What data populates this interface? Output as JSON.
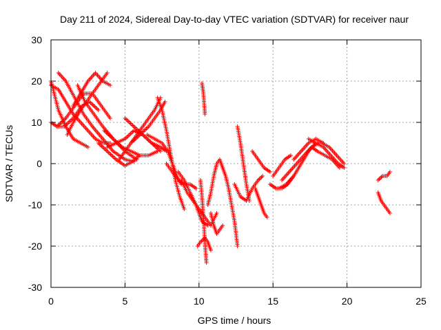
{
  "chart_data": {
    "type": "scatter",
    "title": "Day 211 of 2024, Sidereal Day-to-day VTEC variation (SDTVAR) for receiver naur",
    "xlabel": "GPS time / hours",
    "ylabel": "SDTVAR / TECUs",
    "xlim": [
      0,
      25
    ],
    "ylim": [
      -30,
      30
    ],
    "xticks": [
      "0",
      "5",
      "10",
      "15",
      "20",
      "25"
    ],
    "yticks": [
      "-30",
      "-20",
      "-10",
      "0",
      "10",
      "20",
      "30"
    ],
    "grid": true,
    "marker": "+",
    "color": "#ff0000",
    "series": [
      {
        "x": [
          0.0,
          0.5,
          1.0,
          1.5,
          2.0,
          2.5
        ],
        "y": [
          20,
          13,
          9,
          6,
          5,
          4
        ]
      },
      {
        "x": [
          0.0,
          0.5,
          1.0,
          1.5,
          2.0,
          2.5,
          3.0,
          3.5,
          4.0
        ],
        "y": [
          19,
          18,
          15,
          12,
          10,
          8,
          6,
          5,
          5
        ]
      },
      {
        "x": [
          0.0,
          0.4,
          0.9,
          1.5,
          2.1,
          2.6,
          3.2
        ],
        "y": [
          10,
          9,
          9,
          11,
          14,
          15,
          13
        ]
      },
      {
        "x": [
          0.4,
          1.0,
          1.6,
          2.2,
          2.8,
          3.4,
          4.0
        ],
        "y": [
          9,
          11,
          14,
          17,
          17,
          14,
          11
        ]
      },
      {
        "x": [
          0.5,
          1.0,
          1.6,
          2.2,
          2.8,
          3.5,
          4.2,
          5.0,
          5.6
        ],
        "y": [
          22,
          20,
          16,
          12,
          9,
          6,
          3,
          1,
          0.5
        ]
      },
      {
        "x": [
          1.1,
          1.5,
          2.0,
          2.6,
          3.2,
          3.8
        ],
        "y": [
          7,
          10,
          13,
          16,
          19,
          22
        ]
      },
      {
        "x": [
          1.8,
          2.3,
          2.9,
          3.5,
          4.2,
          5.0,
          5.8
        ],
        "y": [
          19,
          15,
          12,
          9,
          6,
          3,
          1
        ]
      },
      {
        "x": [
          1.5,
          2.0,
          2.5,
          3.0,
          3.5,
          4.0
        ],
        "y": [
          14,
          17,
          20,
          22,
          20,
          19
        ]
      },
      {
        "x": [
          3.2,
          3.8,
          4.4,
          5.0,
          5.5,
          6.0
        ],
        "y": [
          5,
          3,
          1,
          -0.5,
          0.5,
          2
        ]
      },
      {
        "x": [
          3.6,
          4.2,
          4.8,
          5.4,
          6.0,
          6.6,
          7.2
        ],
        "y": [
          8,
          6,
          4,
          3,
          2,
          2,
          3
        ]
      },
      {
        "x": [
          3.8,
          4.4,
          5.0,
          5.6,
          6.2,
          6.8,
          7.4
        ],
        "y": [
          4,
          5,
          6,
          8,
          7,
          5,
          3
        ]
      },
      {
        "x": [
          5.0,
          5.6,
          6.2,
          6.8,
          7.4,
          7.8
        ],
        "y": [
          11,
          9,
          7,
          5,
          4,
          3
        ]
      },
      {
        "x": [
          4.6,
          5.2,
          5.8,
          6.4,
          7.0,
          7.4
        ],
        "y": [
          1,
          4,
          7,
          10,
          13,
          16
        ]
      },
      {
        "x": [
          5.4,
          6.0,
          6.6,
          7.0,
          7.4,
          7.7
        ],
        "y": [
          5,
          7,
          9,
          11,
          13,
          15
        ]
      },
      {
        "x": [
          7.2,
          7.5,
          7.8,
          8.1,
          8.4,
          8.7,
          9.0
        ],
        "y": [
          16,
          13,
          8,
          2,
          -4,
          -8,
          -11
        ]
      },
      {
        "x": [
          6.5,
          7.0,
          7.5,
          7.9,
          8.2,
          8.5,
          8.8
        ],
        "y": [
          7,
          6,
          5,
          3,
          0,
          -3,
          -5
        ]
      },
      {
        "x": [
          7.8,
          8.2,
          8.6,
          9.0,
          9.4,
          9.8
        ],
        "y": [
          0,
          -2,
          -4,
          -5,
          -5,
          -6
        ]
      },
      {
        "x": [
          8.6,
          9.0,
          9.4,
          9.8,
          10.2,
          10.6
        ],
        "y": [
          -2,
          -4,
          -7,
          -10,
          -14,
          -15
        ]
      },
      {
        "x": [
          8.8,
          9.2,
          9.6,
          10.0,
          10.4,
          10.8,
          11.2
        ],
        "y": [
          -4,
          -7,
          -9,
          -11,
          -13,
          -15,
          -12
        ]
      },
      {
        "x": [
          10.2,
          10.3,
          10.4
        ],
        "y": [
          19.5,
          17,
          12
        ]
      },
      {
        "x": [
          10.1,
          10.2,
          10.3,
          10.4,
          10.5
        ],
        "y": [
          -4,
          -8,
          -13,
          -19,
          -24
        ]
      },
      {
        "x": [
          9.9,
          10.1,
          10.4,
          10.6,
          10.8
        ],
        "y": [
          -20,
          -19,
          -18,
          -19,
          -21
        ]
      },
      {
        "x": [
          10.6,
          10.8,
          11.0,
          11.2,
          11.4,
          11.6
        ],
        "y": [
          -10,
          -7,
          -3,
          0,
          1,
          -1
        ]
      },
      {
        "x": [
          10.8,
          11.0,
          11.2,
          11.4,
          11.6
        ],
        "y": [
          -12,
          -15,
          -17,
          -16,
          -15
        ]
      },
      {
        "x": [
          11.6,
          11.8,
          12.0,
          12.2,
          12.4,
          12.6
        ],
        "y": [
          -1,
          -3,
          -6,
          -10,
          -14,
          -20
        ]
      },
      {
        "x": [
          12.6,
          12.8,
          13.0,
          13.2,
          13.4
        ],
        "y": [
          9,
          5,
          0,
          -5,
          -9
        ]
      },
      {
        "x": [
          12.4,
          12.8,
          13.2,
          13.6,
          14.0,
          14.3
        ],
        "y": [
          -5,
          -8,
          -9,
          -6,
          -4,
          -3
        ]
      },
      {
        "x": [
          13.8,
          14.0,
          14.2,
          14.4,
          14.6
        ],
        "y": [
          -6,
          -8,
          -10,
          -12,
          -13
        ]
      },
      {
        "x": [
          13.6,
          14.0,
          14.4,
          14.8
        ],
        "y": [
          3,
          1,
          -1,
          -2
        ]
      },
      {
        "x": [
          14.8,
          15.2,
          15.6,
          16.0,
          16.4
        ],
        "y": [
          -5,
          -6,
          -6,
          -5,
          -3
        ]
      },
      {
        "x": [
          15.0,
          15.4,
          15.8,
          16.2
        ],
        "y": [
          -3,
          -1,
          1,
          2
        ]
      },
      {
        "x": [
          15.4,
          15.9,
          16.4,
          16.9,
          17.4,
          17.9,
          18.3
        ],
        "y": [
          -6,
          -5,
          -3,
          0,
          3,
          5,
          5
        ]
      },
      {
        "x": [
          15.6,
          16.1,
          16.6,
          17.1,
          17.6,
          18.1
        ],
        "y": [
          -4,
          -2,
          0,
          2,
          4,
          5
        ]
      },
      {
        "x": [
          16.4,
          16.9,
          17.4,
          17.9,
          18.4
        ],
        "y": [
          1,
          3,
          5,
          6,
          5
        ]
      },
      {
        "x": [
          17.4,
          17.9,
          18.4,
          18.9,
          19.4,
          19.8
        ],
        "y": [
          6,
          5,
          4,
          2,
          0,
          -1
        ]
      },
      {
        "x": [
          17.8,
          18.3,
          18.8,
          19.3,
          19.8
        ],
        "y": [
          5,
          5,
          4,
          2,
          0
        ]
      },
      {
        "x": [
          17.6,
          18.0,
          18.5,
          19.0,
          19.5
        ],
        "y": [
          4,
          3,
          2,
          1,
          -1
        ]
      },
      {
        "x": [
          22.1,
          22.4,
          22.7,
          22.9
        ],
        "y": [
          -4,
          -3,
          -3,
          -2
        ]
      },
      {
        "x": [
          22.1,
          22.3,
          22.5,
          22.7,
          22.9
        ],
        "y": [
          -7,
          -9,
          -10,
          -11,
          -12
        ]
      }
    ]
  }
}
